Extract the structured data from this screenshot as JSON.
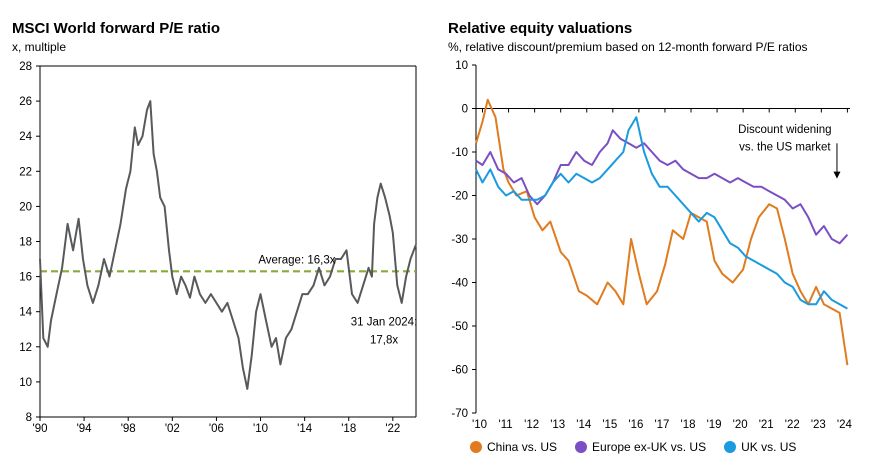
{
  "chart_data": [
    {
      "type": "line",
      "title": "MSCI World forward P/E ratio",
      "subtitle": "x, multiple",
      "ylim": [
        8,
        28
      ],
      "yticks": [
        8,
        10,
        12,
        14,
        16,
        18,
        20,
        22,
        24,
        26,
        28
      ],
      "x_tick_labels": [
        "'90",
        "'94",
        "'98",
        "'02",
        "'06",
        "'10",
        "'14",
        "'18",
        "'22"
      ],
      "x_tick_years": [
        1990,
        1994,
        1998,
        2002,
        2006,
        2010,
        2014,
        2018,
        2022
      ],
      "xlim": [
        1990,
        2024.1
      ],
      "grid": false,
      "average": {
        "value": 16.3,
        "label": "Average: 16,3x",
        "color": "#8aaa3c"
      },
      "annotation": "31 Jan 2024:\n17,8x",
      "series": [
        {
          "color": "#58595b",
          "x": [
            1990.0,
            1990.3,
            1990.7,
            1991.0,
            1991.5,
            1992.0,
            1992.5,
            1993.0,
            1993.5,
            1993.9,
            1994.3,
            1994.8,
            1995.3,
            1995.8,
            1996.3,
            1996.8,
            1997.3,
            1997.8,
            1998.2,
            1998.6,
            1998.9,
            1999.3,
            1999.7,
            2000.0,
            2000.3,
            2000.6,
            2000.9,
            2001.3,
            2001.7,
            2002.0,
            2002.4,
            2002.8,
            2003.2,
            2003.6,
            2004.0,
            2004.5,
            2005.0,
            2005.5,
            2006.0,
            2006.5,
            2007.0,
            2007.5,
            2008.0,
            2008.4,
            2008.8,
            2009.2,
            2009.6,
            2010.0,
            2010.5,
            2011.0,
            2011.4,
            2011.8,
            2012.3,
            2012.8,
            2013.3,
            2013.8,
            2014.3,
            2014.8,
            2015.3,
            2015.8,
            2016.3,
            2016.8,
            2017.3,
            2017.8,
            2018.0,
            2018.3,
            2018.8,
            2019.3,
            2019.8,
            2020.1,
            2020.3,
            2020.6,
            2020.9,
            2021.3,
            2021.7,
            2022.0,
            2022.4,
            2022.8,
            2023.2,
            2023.6,
            2024.08
          ],
          "y": [
            17.0,
            12.5,
            12.0,
            13.5,
            15.0,
            16.5,
            19.0,
            17.5,
            19.3,
            17.0,
            15.5,
            14.5,
            15.5,
            17.0,
            16.0,
            17.5,
            19.0,
            21.0,
            22.0,
            24.5,
            23.5,
            24.0,
            25.5,
            26.0,
            23.0,
            22.0,
            20.5,
            20.0,
            17.5,
            16.0,
            15.0,
            16.0,
            15.5,
            14.8,
            16.0,
            15.0,
            14.5,
            15.0,
            14.5,
            14.0,
            14.5,
            13.5,
            12.5,
            10.8,
            9.6,
            11.5,
            14.0,
            15.0,
            13.5,
            12.0,
            12.5,
            11.0,
            12.5,
            13.0,
            14.0,
            15.0,
            15.0,
            15.5,
            16.5,
            15.5,
            16.0,
            17.0,
            17.0,
            17.5,
            16.5,
            15.0,
            14.5,
            15.5,
            16.5,
            16.0,
            19.0,
            20.5,
            21.3,
            20.5,
            19.5,
            18.5,
            15.5,
            14.5,
            16.0,
            17.0,
            17.8
          ]
        }
      ]
    },
    {
      "type": "line",
      "title": "Relative equity valuations",
      "subtitle": "%, relative discount/premium based on 12-month forward P/E ratios",
      "ylim": [
        -70,
        10
      ],
      "yticks": [
        10,
        0,
        -10,
        -20,
        -30,
        -40,
        -50,
        -60,
        -70
      ],
      "x_tick_labels": [
        "'10",
        "'11",
        "'12",
        "'13",
        "'14",
        "'15",
        "'16",
        "'17",
        "'18",
        "'19",
        "'20",
        "'21",
        "'22",
        "'23",
        "'24"
      ],
      "x_tick_years": [
        2010,
        2011,
        2012,
        2013,
        2014,
        2015,
        2016,
        2017,
        2018,
        2019,
        2020,
        2021,
        2022,
        2023,
        2024
      ],
      "xlim": [
        2009.75,
        2024.1
      ],
      "grid": false,
      "annotation": "Discount widening\nvs. the US market",
      "legend_position": "bottom",
      "series": [
        {
          "name": "China vs. US",
          "color": "#e07b1f",
          "x": [
            2009.75,
            2010.0,
            2010.2,
            2010.5,
            2010.8,
            2011.0,
            2011.3,
            2011.7,
            2012.0,
            2012.3,
            2012.6,
            2013.0,
            2013.3,
            2013.7,
            2014.0,
            2014.4,
            2014.8,
            2015.1,
            2015.4,
            2015.7,
            2016.0,
            2016.3,
            2016.7,
            2017.0,
            2017.3,
            2017.7,
            2018.0,
            2018.3,
            2018.6,
            2018.9,
            2019.2,
            2019.6,
            2020.0,
            2020.3,
            2020.6,
            2021.0,
            2021.3,
            2021.6,
            2021.9,
            2022.2,
            2022.5,
            2022.8,
            2023.1,
            2023.4,
            2023.7,
            2024.0
          ],
          "y": [
            -8,
            -3,
            2,
            -2,
            -14,
            -17,
            -20,
            -19,
            -25,
            -28,
            -26,
            -33,
            -35,
            -42,
            -43,
            -45,
            -40,
            -42,
            -45,
            -30,
            -38,
            -45,
            -42,
            -36,
            -28,
            -30,
            -24,
            -25,
            -26,
            -35,
            -38,
            -40,
            -37,
            -30,
            -25,
            -22,
            -23,
            -30,
            -38,
            -42,
            -45,
            -41,
            -45,
            -46,
            -47,
            -59
          ]
        },
        {
          "name": "Europe ex-UK vs. US",
          "color": "#7b4fc4",
          "x": [
            2009.75,
            2010.0,
            2010.3,
            2010.6,
            2010.9,
            2011.2,
            2011.5,
            2011.8,
            2012.1,
            2012.4,
            2012.7,
            2013.0,
            2013.3,
            2013.6,
            2013.9,
            2014.2,
            2014.5,
            2014.8,
            2015.0,
            2015.3,
            2015.6,
            2015.9,
            2016.2,
            2016.5,
            2016.8,
            2017.1,
            2017.4,
            2017.7,
            2018.0,
            2018.3,
            2018.6,
            2018.9,
            2019.2,
            2019.5,
            2019.8,
            2020.1,
            2020.4,
            2020.7,
            2021.0,
            2021.3,
            2021.6,
            2021.9,
            2022.2,
            2022.5,
            2022.8,
            2023.1,
            2023.4,
            2023.7,
            2024.0
          ],
          "y": [
            -12,
            -13,
            -10,
            -14,
            -15,
            -17,
            -16,
            -20,
            -22,
            -20,
            -17,
            -13,
            -13,
            -10,
            -12,
            -13,
            -10,
            -8,
            -5,
            -7,
            -8,
            -9,
            -8,
            -10,
            -12,
            -13,
            -12,
            -14,
            -15,
            -16,
            -16,
            -15,
            -16,
            -17,
            -16,
            -17,
            -18,
            -18,
            -19,
            -20,
            -21,
            -23,
            -22,
            -25,
            -29,
            -27,
            -30,
            -31,
            -29
          ]
        },
        {
          "name": "UK vs. US",
          "color": "#1a9be0",
          "x": [
            2009.75,
            2010.0,
            2010.3,
            2010.6,
            2010.9,
            2011.2,
            2011.5,
            2011.8,
            2012.1,
            2012.4,
            2012.7,
            2013.0,
            2013.3,
            2013.6,
            2013.9,
            2014.2,
            2014.5,
            2014.8,
            2015.1,
            2015.4,
            2015.6,
            2015.9,
            2016.2,
            2016.5,
            2016.8,
            2017.1,
            2017.4,
            2017.7,
            2018.0,
            2018.3,
            2018.6,
            2018.9,
            2019.2,
            2019.5,
            2019.8,
            2020.1,
            2020.4,
            2020.7,
            2021.0,
            2021.3,
            2021.6,
            2021.9,
            2022.2,
            2022.5,
            2022.8,
            2023.1,
            2023.4,
            2023.7,
            2024.0
          ],
          "y": [
            -14,
            -17,
            -14,
            -18,
            -20,
            -19,
            -21,
            -21,
            -21,
            -20,
            -17,
            -15,
            -17,
            -15,
            -16,
            -17,
            -16,
            -14,
            -12,
            -10,
            -5,
            -2,
            -10,
            -15,
            -18,
            -18,
            -20,
            -22,
            -24,
            -26,
            -24,
            -25,
            -28,
            -31,
            -32,
            -34,
            -35,
            -36,
            -37,
            -38,
            -40,
            -41,
            -44,
            -45,
            -45,
            -42,
            -44,
            -45,
            -46
          ]
        }
      ]
    }
  ]
}
